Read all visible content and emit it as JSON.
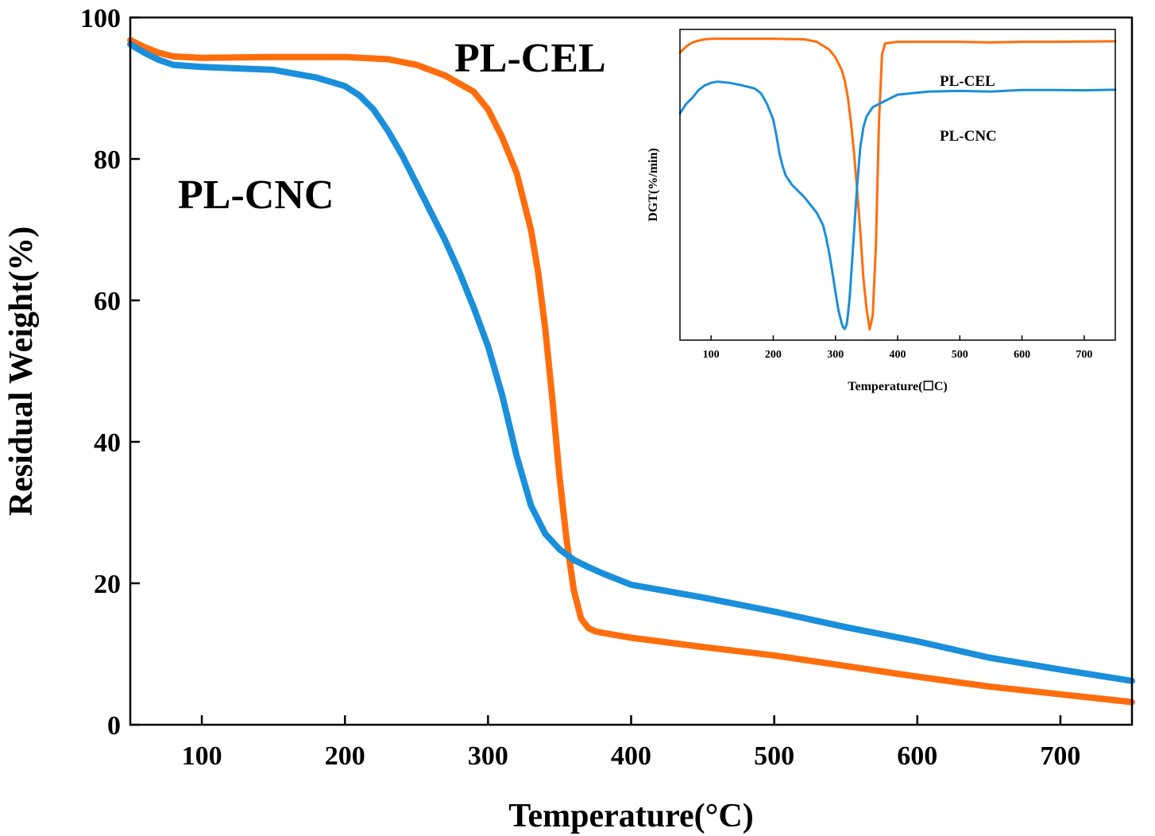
{
  "chart_data": [
    {
      "type": "line",
      "title": "",
      "xlabel": "Temperature(°C)",
      "ylabel": "Residual Weight(%)",
      "xlim": [
        50,
        750
      ],
      "ylim": [
        0,
        100
      ],
      "xticks": [
        "100",
        "200",
        "300",
        "400",
        "500",
        "600",
        "700"
      ],
      "yticks": [
        "0",
        "20",
        "40",
        "60",
        "80",
        "100"
      ],
      "grid": false,
      "annotations": [
        "PL-CEL",
        "PL-CNC"
      ],
      "series": [
        {
          "name": "PL-CEL",
          "color": "#FF6D0D",
          "x": [
            50,
            60,
            70,
            80,
            100,
            150,
            200,
            230,
            250,
            270,
            290,
            300,
            310,
            320,
            330,
            335,
            340,
            345,
            350,
            355,
            360,
            365,
            370,
            375,
            380,
            400,
            450,
            500,
            550,
            600,
            650,
            700,
            750
          ],
          "y": [
            96.8,
            95.8,
            95.0,
            94.5,
            94.3,
            94.4,
            94.4,
            94.1,
            93.3,
            91.8,
            89.5,
            87.0,
            83.0,
            78.0,
            70.0,
            64.0,
            56.0,
            46.0,
            35.0,
            26.0,
            19.0,
            15.0,
            13.7,
            13.2,
            13.0,
            12.3,
            11.0,
            9.8,
            8.3,
            6.8,
            5.4,
            4.3,
            3.2
          ]
        },
        {
          "name": "PL-CNC",
          "color": "#1A8FDB",
          "x": [
            50,
            60,
            70,
            80,
            100,
            150,
            180,
            200,
            210,
            220,
            230,
            240,
            250,
            260,
            270,
            280,
            290,
            300,
            310,
            320,
            330,
            340,
            350,
            360,
            370,
            380,
            400,
            450,
            500,
            550,
            600,
            650,
            700,
            750
          ],
          "y": [
            96.2,
            95.0,
            94.0,
            93.3,
            93.0,
            92.6,
            91.5,
            90.3,
            89.0,
            87.0,
            84.0,
            80.5,
            76.5,
            72.5,
            68.5,
            64.0,
            59.0,
            53.5,
            46.5,
            38.0,
            31.0,
            27.0,
            24.8,
            23.3,
            22.3,
            21.4,
            19.8,
            18.0,
            16.0,
            13.8,
            11.8,
            9.5,
            7.8,
            6.2
          ]
        }
      ]
    },
    {
      "type": "line",
      "title": "",
      "xlabel": "Temperature(☐C)",
      "ylabel": "DGT(%/min)",
      "xlim": [
        50,
        750
      ],
      "ylim": [
        0,
        100
      ],
      "xticks": [
        "100",
        "200",
        "300",
        "400",
        "500",
        "600",
        "700"
      ],
      "yticks": [],
      "grid": false,
      "annotations": [
        "PL-CEL",
        "PL-CNC"
      ],
      "series": [
        {
          "name": "PL-CEL",
          "color": "#FF6D0D",
          "x": [
            50,
            60,
            70,
            80,
            90,
            100,
            120,
            150,
            200,
            250,
            270,
            290,
            300,
            310,
            315,
            320,
            325,
            330,
            335,
            340,
            345,
            350,
            355,
            360,
            365,
            370,
            375,
            380,
            400,
            450,
            500,
            550,
            600,
            650,
            700,
            750
          ],
          "y": [
            92.5,
            94.5,
            95.8,
            96.4,
            96.8,
            97.0,
            97.0,
            97.0,
            97.0,
            96.8,
            96.0,
            93.5,
            91.0,
            87.0,
            83.5,
            78.0,
            70.0,
            60.0,
            48.0,
            35.0,
            20.0,
            10.0,
            3.5,
            8.0,
            30.0,
            70.0,
            92.0,
            95.5,
            96.0,
            96.0,
            96.0,
            95.8,
            96.0,
            96.0,
            96.1,
            96.2
          ]
        },
        {
          "name": "PL-CNC",
          "color": "#1A8FDB",
          "x": [
            50,
            60,
            70,
            80,
            90,
            100,
            110,
            130,
            150,
            170,
            180,
            190,
            200,
            205,
            210,
            215,
            220,
            230,
            240,
            250,
            260,
            270,
            280,
            285,
            290,
            295,
            300,
            305,
            310,
            312,
            315,
            318,
            320,
            323,
            326,
            330,
            335,
            340,
            345,
            350,
            360,
            380,
            400,
            450,
            500,
            550,
            600,
            650,
            700,
            750
          ],
          "y": [
            73.0,
            76.0,
            78.0,
            80.5,
            82.0,
            82.8,
            83.2,
            82.8,
            82.0,
            81.0,
            79.5,
            76.0,
            71.0,
            66.0,
            60.0,
            56.0,
            53.0,
            50.0,
            48.0,
            46.0,
            43.5,
            41.0,
            37.0,
            33.0,
            28.0,
            22.0,
            15.5,
            9.5,
            5.5,
            4.2,
            3.6,
            5.0,
            8.0,
            14.0,
            23.0,
            35.0,
            50.0,
            62.0,
            68.5,
            72.0,
            75.0,
            77.0,
            79.0,
            80.0,
            80.2,
            80.0,
            80.5,
            80.5,
            80.4,
            80.6
          ]
        }
      ]
    }
  ]
}
